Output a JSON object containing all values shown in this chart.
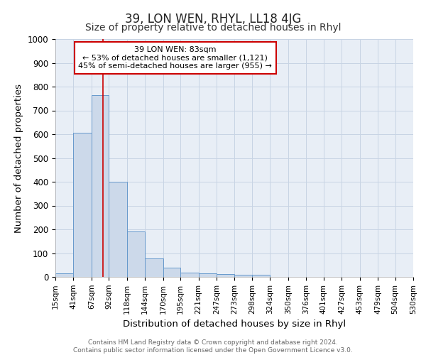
{
  "title": "39, LON WEN, RHYL, LL18 4JG",
  "subtitle": "Size of property relative to detached houses in Rhyl",
  "xlabel": "Distribution of detached houses by size in Rhyl",
  "ylabel": "Number of detached properties",
  "bar_edges": [
    15,
    41,
    67,
    92,
    118,
    144,
    170,
    195,
    221,
    247,
    273,
    298,
    324,
    350,
    376,
    401,
    427,
    453,
    479,
    504,
    530
  ],
  "bar_heights": [
    15,
    605,
    765,
    400,
    190,
    77,
    40,
    18,
    14,
    12,
    10,
    8,
    0,
    0,
    0,
    0,
    0,
    0,
    0,
    0
  ],
  "bar_color": "#ccd9ea",
  "bar_edge_color": "#6699cc",
  "grid_color": "#c8d4e4",
  "background_color": "#ffffff",
  "plot_bg_color": "#e8eef6",
  "red_line_x": 83,
  "annotation_text": "39 LON WEN: 83sqm\n← 53% of detached houses are smaller (1,121)\n45% of semi-detached houses are larger (955) →",
  "annotation_box_color": "#ffffff",
  "annotation_border_color": "#cc0000",
  "ylim": [
    0,
    1000
  ],
  "yticks": [
    0,
    100,
    200,
    300,
    400,
    500,
    600,
    700,
    800,
    900,
    1000
  ],
  "footnote": "Contains HM Land Registry data © Crown copyright and database right 2024.\nContains public sector information licensed under the Open Government Licence v3.0.",
  "title_fontsize": 12,
  "subtitle_fontsize": 10,
  "tick_label_fontsize": 7.5,
  "axis_label_fontsize": 9.5,
  "footnote_fontsize": 6.5
}
